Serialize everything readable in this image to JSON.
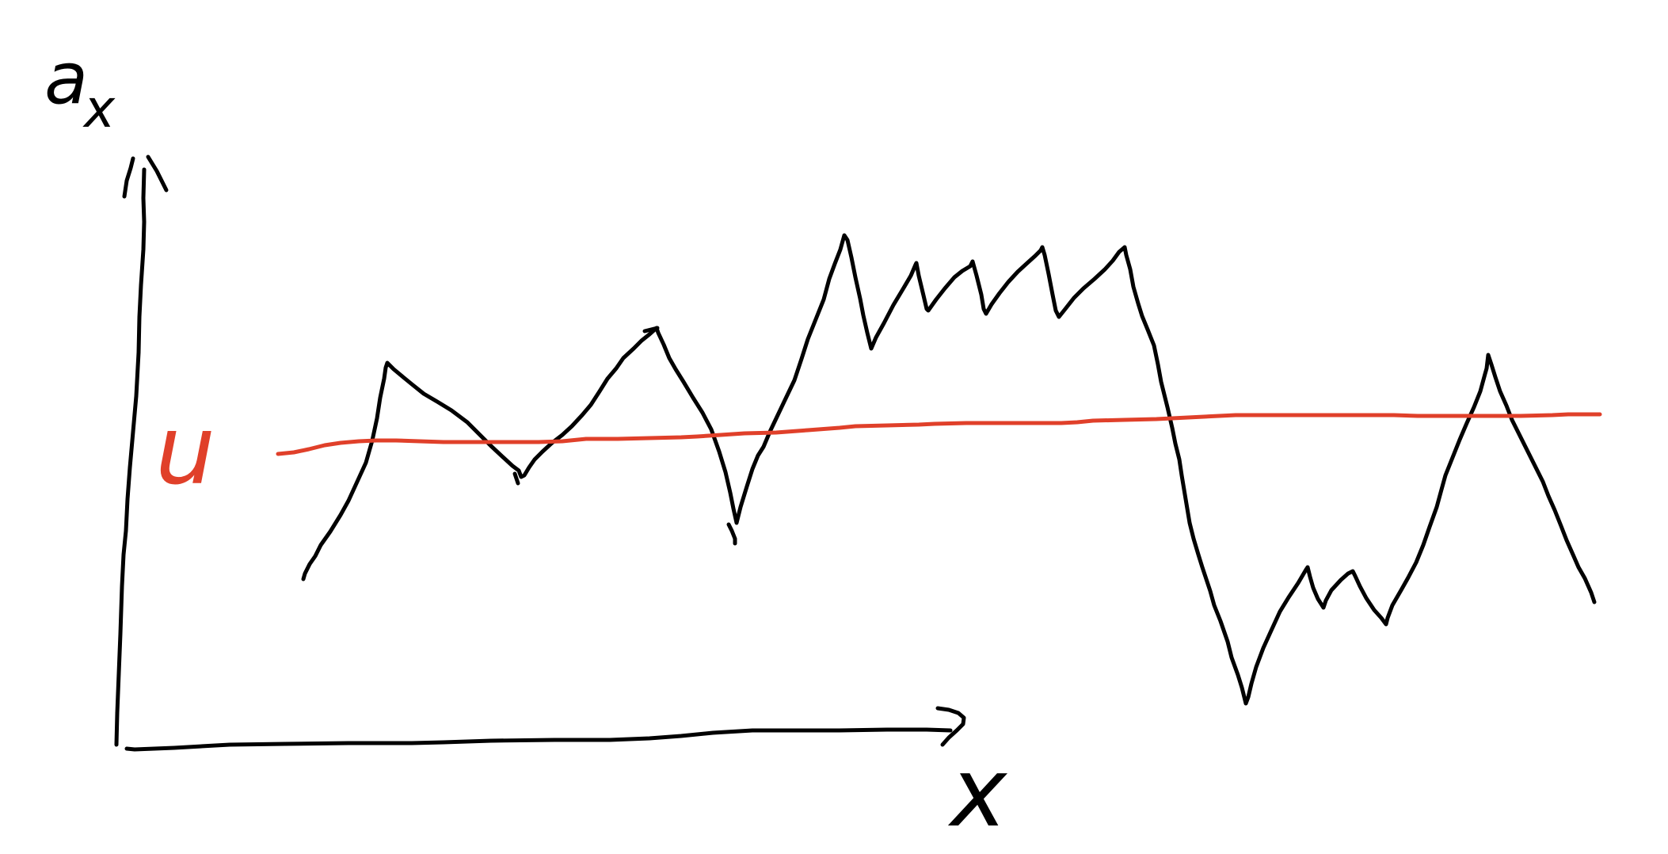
{
  "diagram": {
    "y_axis_label": "a",
    "y_axis_subscript": "x",
    "x_axis_label": "x",
    "mean_label": "u",
    "colors": {
      "ink": "#000000",
      "mean_line": "#e0402a",
      "background": "#ffffff"
    }
  }
}
